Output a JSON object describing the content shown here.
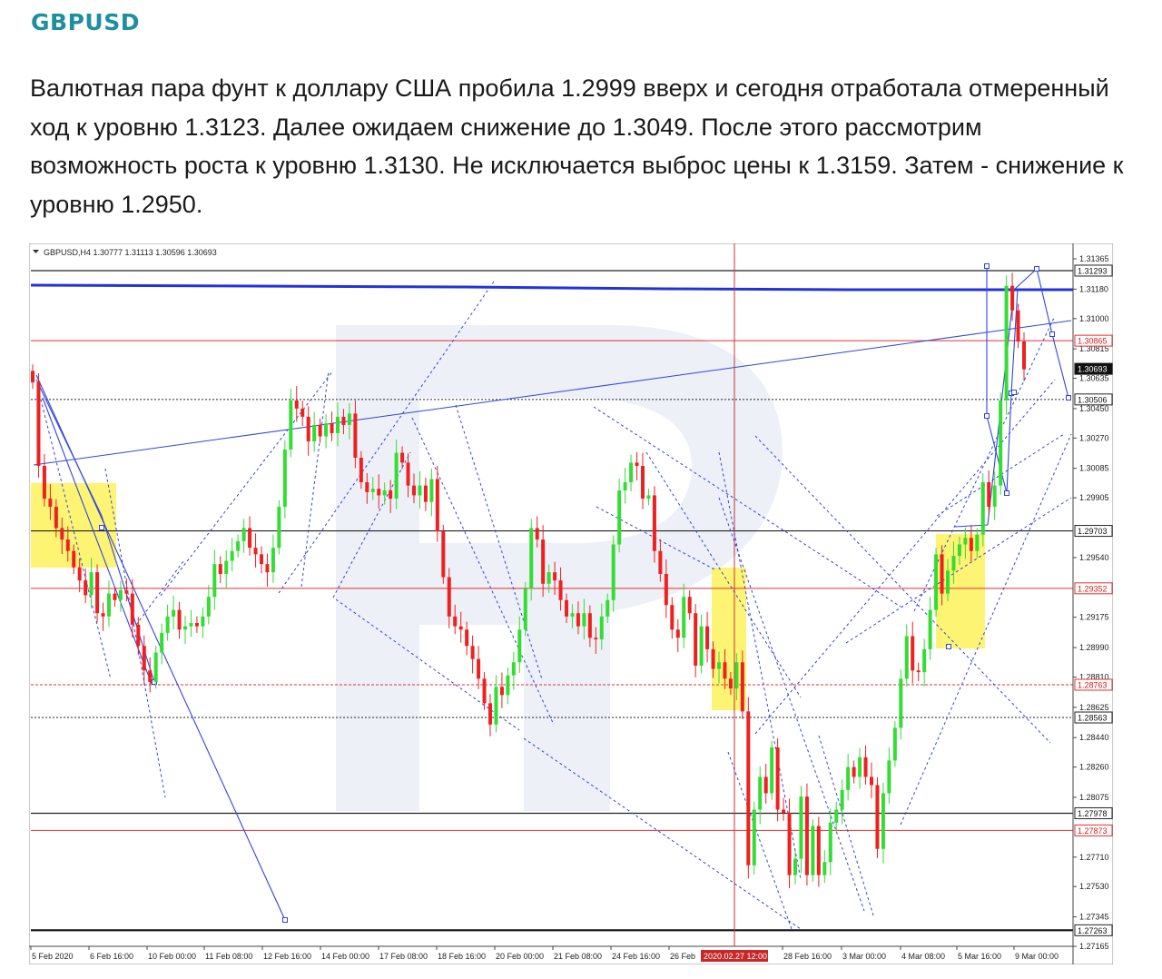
{
  "heading": "GBPUSD",
  "article": "Валютная пара фунт к доллару США пробила 1.2999 вверх и сегодня отработала отмеренный ход к уровню 1.3123. Далее ожидаем снижение до 1.3049. После этого рассмотрим возможность роста к уровню 1.3130. Не исключается выброс цены к 1.3159. Затем - снижение к уровню 1.2950.",
  "chart_data": {
    "type": "candlestick",
    "title": "GBPUSD,H4  1.30777 1.31113 1.30596 1.30693",
    "timeframe": "H4",
    "ylim": [
      1.27165,
      1.31365
    ],
    "y_ticks": [
      "1.31365",
      "1.31180",
      "1.31000",
      "1.30815",
      "1.30635",
      "1.30450",
      "1.30270",
      "1.30085",
      "1.29905",
      "1.29540",
      "1.29175",
      "1.28990",
      "1.28810",
      "1.28625",
      "1.28440",
      "1.28260",
      "1.28075",
      "1.27710",
      "1.27530",
      "1.27345",
      "1.27165"
    ],
    "x_ticks": [
      "5 Feb 2020",
      "6 Feb 16:00",
      "10 Feb 00:00",
      "11 Feb 08:00",
      "12 Feb 16:00",
      "14 Feb 00:00",
      "17 Feb 08:00",
      "18 Feb 16:00",
      "20 Feb 00:00",
      "21 Feb 08:00",
      "24 Feb 16:00",
      "26 Feb",
      "28 Feb 16:00",
      "3 Mar 00:00",
      "4 Mar 08:00",
      "5 Mar 16:00",
      "9 Mar 00:00"
    ],
    "crosshair_time_label": "2020.02.27 12:00",
    "level_labels": [
      {
        "value": 1.31293,
        "label": "1.31293",
        "kind": "black"
      },
      {
        "value": 1.30865,
        "label": "1.30865",
        "kind": "red"
      },
      {
        "value": 1.30693,
        "label": "1.30693",
        "kind": "price"
      },
      {
        "value": 1.30506,
        "label": "1.30506",
        "kind": "black-dash"
      },
      {
        "value": 1.29703,
        "label": "1.29703",
        "kind": "black"
      },
      {
        "value": 1.29352,
        "label": "1.29352",
        "kind": "red"
      },
      {
        "value": 1.28763,
        "label": "1.28763",
        "kind": "red-dash"
      },
      {
        "value": 1.28563,
        "label": "1.28563",
        "kind": "black-dash"
      },
      {
        "value": 1.27978,
        "label": "1.27978",
        "kind": "black"
      },
      {
        "value": 1.27873,
        "label": "1.27873",
        "kind": "red"
      },
      {
        "value": 1.27263,
        "label": "1.27263",
        "kind": "black"
      }
    ],
    "closes": [
      1.3061,
      1.301,
      1.299,
      1.2985,
      1.2972,
      1.2965,
      1.2958,
      1.2948,
      1.294,
      1.2931,
      1.2945,
      1.292,
      1.2918,
      1.2932,
      1.2928,
      1.2934,
      1.2932,
      1.2913,
      1.29,
      1.2885,
      1.2878,
      1.2896,
      1.2908,
      1.2918,
      1.2922,
      1.291,
      1.2912,
      1.2914,
      1.2912,
      1.2918,
      1.293,
      1.295,
      1.2944,
      1.2952,
      1.2958,
      1.2964,
      1.2972,
      1.296,
      1.2956,
      1.295,
      1.2945,
      1.296,
      1.2985,
      1.302,
      1.305,
      1.3045,
      1.304,
      1.3025,
      1.3035,
      1.3028,
      1.3036,
      1.303,
      1.304,
      1.3035,
      1.3042,
      1.3015,
      1.3,
      1.2994,
      1.2996,
      1.2992,
      1.2995,
      1.299,
      1.3018,
      1.3012,
      1.2998,
      1.2992,
      1.2998,
      1.2988,
      1.3002,
      1.297,
      1.2942,
      1.2918,
      1.2912,
      1.291,
      1.29,
      1.2892,
      1.288,
      1.2865,
      1.2852,
      1.2875,
      1.287,
      1.2882,
      1.289,
      1.291,
      1.2935,
      1.2972,
      1.2965,
      1.2938,
      1.2945,
      1.294,
      1.2928,
      1.2918,
      1.292,
      1.2912,
      1.292,
      1.2905,
      1.2904,
      1.2918,
      1.2928,
      1.2962,
      1.2995,
      1.3,
      1.3012,
      1.301,
      1.299,
      1.2992,
      1.2958,
      1.2944,
      1.2925,
      1.291,
      1.2905,
      1.293,
      1.292,
      1.2888,
      1.2912,
      1.2898,
      1.2886,
      1.289,
      1.288,
      1.2874,
      1.289,
      1.286,
      1.2766,
      1.28,
      1.282,
      1.281,
      1.2838,
      1.28,
      1.2798,
      1.276,
      1.277,
      1.2808,
      1.276,
      1.279,
      1.276,
      1.2768,
      1.2792,
      1.28,
      1.2812,
      1.2826,
      1.282,
      1.2832,
      1.282,
      1.2815,
      1.2776,
      1.281,
      1.283,
      1.285,
      1.288,
      1.2906,
      1.2885,
      1.2884,
      1.2898,
      1.2922,
      1.2956,
      1.2932,
      1.2946,
      1.2955,
      1.2962,
      1.2966,
      1.2958,
      1.2968,
      1.3,
      1.2985,
      1.2998,
      1.305,
      1.312,
      1.3105,
      1.3086,
      1.3069
    ]
  }
}
